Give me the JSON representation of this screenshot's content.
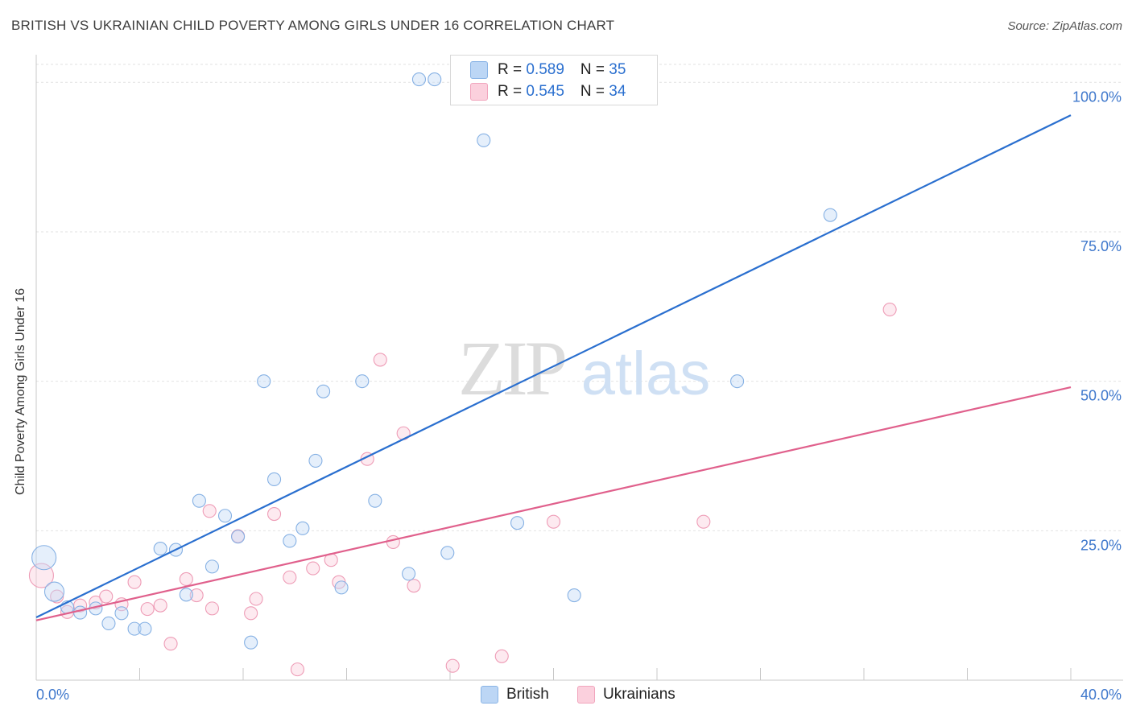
{
  "title": "BRITISH VS UKRAINIAN CHILD POVERTY AMONG GIRLS UNDER 16 CORRELATION CHART",
  "source": "Source: ZipAtlas.com",
  "watermark": {
    "zip": "ZIP",
    "atlas": "atlas"
  },
  "legend": {
    "british": {
      "r_label": "R = ",
      "r_value": "0.589",
      "n_label": "N = ",
      "n_value": "35"
    },
    "ukrainians": {
      "r_label": "R = ",
      "r_value": "0.545",
      "n_label": "N = ",
      "n_value": "34"
    }
  },
  "chart_data": {
    "type": "scatter",
    "title": "BRITISH VS UKRAINIAN CHILD POVERTY AMONG GIRLS UNDER 16 CORRELATION CHART",
    "ylabel": "Child Poverty Among Girls Under 16",
    "xlim": [
      0,
      40
    ],
    "ylim": [
      0,
      103
    ],
    "x_tick_labels": [
      "0.0%",
      "40.0%"
    ],
    "y_ticks": [
      25,
      50,
      75,
      100
    ],
    "y_tick_labels": [
      "25.0%",
      "50.0%",
      "75.0%",
      "100.0%"
    ],
    "grid": true,
    "legend_position": "top-center",
    "colors": {
      "british": "#9fc4f0",
      "british_line": "#2a6fcf",
      "ukrainians": "#f5b3c7",
      "ukrainians_line": "#e0608c",
      "axis_text": "#3f78cc"
    },
    "series": [
      {
        "name": "British",
        "points": [
          [
            0.3,
            20.5,
            3
          ],
          [
            0.7,
            14.8,
            2
          ],
          [
            1.2,
            12.2,
            1
          ],
          [
            1.7,
            11.3,
            1
          ],
          [
            2.3,
            12.0,
            1
          ],
          [
            2.8,
            9.5,
            1
          ],
          [
            3.3,
            11.2,
            1
          ],
          [
            3.8,
            8.6,
            1
          ],
          [
            4.2,
            8.6,
            1
          ],
          [
            4.8,
            22.0,
            1
          ],
          [
            5.4,
            21.8,
            1
          ],
          [
            5.8,
            14.3,
            1
          ],
          [
            6.3,
            30.0,
            1
          ],
          [
            6.8,
            19.0,
            1
          ],
          [
            7.3,
            27.5,
            1
          ],
          [
            7.8,
            24.0,
            1
          ],
          [
            8.3,
            6.3,
            1
          ],
          [
            8.8,
            50.0,
            1
          ],
          [
            9.2,
            33.6,
            1
          ],
          [
            9.8,
            23.3,
            1
          ],
          [
            10.3,
            25.4,
            1
          ],
          [
            10.8,
            36.7,
            1
          ],
          [
            11.1,
            48.3,
            1
          ],
          [
            11.8,
            15.5,
            1
          ],
          [
            12.6,
            50.0,
            1
          ],
          [
            13.1,
            30.0,
            1
          ],
          [
            14.4,
            17.8,
            1
          ],
          [
            14.8,
            100.5,
            1
          ],
          [
            15.4,
            100.5,
            1
          ],
          [
            15.9,
            21.3,
            1
          ],
          [
            17.3,
            90.3,
            1
          ],
          [
            18.6,
            26.3,
            1
          ],
          [
            20.8,
            14.2,
            1
          ],
          [
            30.7,
            77.8,
            1
          ],
          [
            27.1,
            50.0,
            1
          ]
        ],
        "trend": [
          [
            0,
            10.5
          ],
          [
            40,
            94.5
          ]
        ]
      },
      {
        "name": "Ukrainians",
        "points": [
          [
            0.2,
            17.5,
            3
          ],
          [
            0.8,
            14.0,
            1
          ],
          [
            1.2,
            11.4,
            1
          ],
          [
            1.7,
            12.5,
            1
          ],
          [
            2.3,
            13.0,
            1
          ],
          [
            2.7,
            14.0,
            1
          ],
          [
            3.3,
            12.7,
            1
          ],
          [
            3.8,
            16.4,
            1
          ],
          [
            4.3,
            11.9,
            1
          ],
          [
            4.8,
            12.5,
            1
          ],
          [
            5.2,
            6.1,
            1
          ],
          [
            5.8,
            16.9,
            1
          ],
          [
            6.2,
            14.2,
            1
          ],
          [
            6.8,
            12.0,
            1
          ],
          [
            6.7,
            28.3,
            1
          ],
          [
            7.8,
            24.1,
            1
          ],
          [
            8.3,
            11.2,
            1
          ],
          [
            8.5,
            13.6,
            1
          ],
          [
            9.2,
            27.8,
            1
          ],
          [
            9.8,
            17.2,
            1
          ],
          [
            10.1,
            1.8,
            1
          ],
          [
            10.7,
            18.7,
            1
          ],
          [
            11.4,
            20.1,
            1
          ],
          [
            11.7,
            16.4,
            1
          ],
          [
            12.8,
            37.0,
            1
          ],
          [
            13.3,
            53.6,
            1
          ],
          [
            13.8,
            23.1,
            1
          ],
          [
            14.2,
            41.3,
            1
          ],
          [
            14.6,
            15.8,
            1
          ],
          [
            16.1,
            2.4,
            1
          ],
          [
            18.0,
            4.0,
            1
          ],
          [
            20.0,
            26.5,
            1
          ],
          [
            25.8,
            26.5,
            1
          ],
          [
            33.0,
            62.0,
            1
          ]
        ],
        "trend": [
          [
            0,
            10.0
          ],
          [
            40,
            49.0
          ]
        ]
      }
    ]
  },
  "bottom_legend": {
    "british": "British",
    "ukrainians": "Ukrainians"
  }
}
